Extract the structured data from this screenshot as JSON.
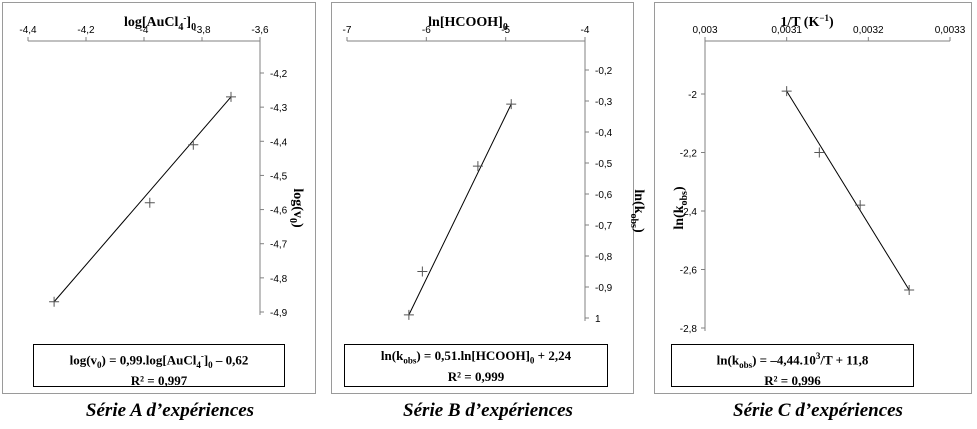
{
  "chart_data": [
    {
      "type": "scatter",
      "xlabel_html": "log[AuCl<tspan baseline-shift=\"sub\" font-size=\"10\">4</tspan><tspan baseline-shift=\"super\" font-size=\"9\">-</tspan>]<tspan baseline-shift=\"sub\" font-size=\"10\">0</tspan>",
      "xlabel": "log[AuCl4-]0",
      "ylabel": "log(v0)",
      "xlim": [
        -4.4,
        -3.6
      ],
      "ylim": [
        -4.9,
        -4.2
      ],
      "x_ticks": [
        "-4,4",
        "-4,2",
        "-4",
        "-3,8",
        "-3,6"
      ],
      "y_ticks": [
        "-4,2",
        "-4,3",
        "-4,4",
        "-4,5",
        "-4,6",
        "-4,7",
        "-4,8",
        "-4,9"
      ],
      "points": [
        [
          -4.31,
          -4.87
        ],
        [
          -3.98,
          -4.58
        ],
        [
          -3.83,
          -4.41
        ],
        [
          -3.7,
          -4.27
        ]
      ],
      "trendline": [
        [
          -4.31,
          -4.87
        ],
        [
          -3.7,
          -4.27
        ]
      ],
      "equation": "log(v0) = 0,99.log[AuCl4-]0 – 0,62",
      "r2": "R² = 0,997"
    },
    {
      "type": "scatter",
      "xlabel": "ln[HCOOH]0",
      "ylabel": "ln(kobs)",
      "xlim": [
        -7,
        -4
      ],
      "ylim": [
        -1,
        -0.2
      ],
      "x_ticks": [
        "-7",
        "-6",
        "-5",
        "-4"
      ],
      "y_ticks": [
        "-0,2",
        "-0,3",
        "-0,4",
        "-0,5",
        "-0,6",
        "-0,7",
        "-0,8",
        "-0,9",
        "1"
      ],
      "points": [
        [
          -6.22,
          -0.99
        ],
        [
          -6.05,
          -0.85
        ],
        [
          -5.35,
          -0.51
        ],
        [
          -4.93,
          -0.31
        ]
      ],
      "trendline": [
        [
          -6.22,
          -0.99
        ],
        [
          -4.93,
          -0.31
        ]
      ],
      "equation": "ln(kobs) = 0,51.ln[HCOOH]0 + 2,24",
      "r2": "R² = 0,999"
    },
    {
      "type": "scatter",
      "xlabel": "1/T (K−1)",
      "ylabel": "ln(kobs)",
      "xlim": [
        0.003,
        0.0033
      ],
      "ylim": [
        -2.8,
        -2.0
      ],
      "x_ticks": [
        "0,003",
        "0,0031",
        "0,0032",
        "0,0033"
      ],
      "y_ticks": [
        "-2",
        "-2,2",
        "-2,4",
        "-2,6",
        "-2,8"
      ],
      "points": [
        [
          0.0031,
          -1.99
        ],
        [
          0.00314,
          -2.2
        ],
        [
          0.00319,
          -2.38
        ],
        [
          0.00325,
          -2.67
        ]
      ],
      "trendline": [
        [
          0.0031,
          -1.99
        ],
        [
          0.00325,
          -2.67
        ]
      ],
      "equation": "ln(kobs) = –4,44.103/T + 11,8",
      "r2": "R² = 0,996"
    }
  ],
  "captions": {
    "a": "Série A d’expériences",
    "b": "Série B d’expériences",
    "c": "Série C d’expériences"
  },
  "colors": {
    "line": "#000000",
    "axis": "#808080",
    "panel_border": "#9a9a9a"
  }
}
